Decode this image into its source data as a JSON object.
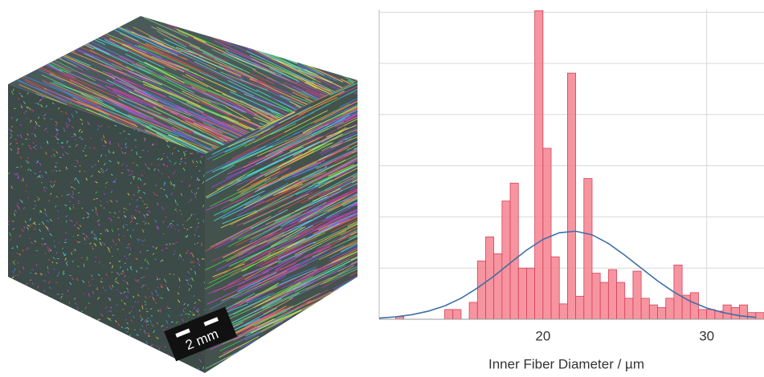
{
  "image": {
    "scale_bar_label": "2 mm"
  },
  "chart_data": {
    "type": "histogram",
    "xlabel": "Inner Fiber Diameter / µm",
    "bins": [
      10,
      10.5,
      11,
      11.5,
      12,
      12.5,
      13,
      13.5,
      14,
      14.5,
      15,
      15.5,
      16,
      16.5,
      17,
      17.5,
      18,
      18.5,
      19,
      19.5,
      20,
      20.5,
      21,
      21.5,
      22,
      22.5,
      23,
      23.5,
      24,
      24.5,
      25,
      25.5,
      26,
      26.5,
      27,
      27.5,
      28,
      28.5,
      29,
      29.5,
      30,
      30.5,
      31,
      31.5,
      32,
      32.5,
      33,
      33.5
    ],
    "counts": [
      0,
      0,
      0.05,
      0,
      0,
      0,
      0,
      0,
      0.19,
      0.19,
      0,
      0.33,
      1.14,
      1.61,
      1.28,
      2.31,
      2.66,
      1.0,
      1.0,
      6.03,
      3.34,
      1.22,
      0.3,
      4.81,
      0.45,
      2.75,
      0.9,
      0.72,
      0.97,
      0.72,
      0.41,
      0.94,
      0.41,
      0.28,
      0.23,
      0.41,
      1.06,
      0.47,
      0.52,
      0.19,
      0.19,
      0.16,
      0.28,
      0.23,
      0.28,
      0.13,
      0.13
    ],
    "color": "#f4838f",
    "edge_color": "#d9405a",
    "fit": {
      "color": "#3f6fa6",
      "x": [
        10,
        11,
        12,
        13,
        14,
        15,
        16,
        17,
        18,
        19,
        20,
        21,
        22,
        23,
        24,
        25,
        26,
        27,
        28,
        29,
        30,
        31,
        32,
        33
      ],
      "y": [
        0.023,
        0.047,
        0.089,
        0.158,
        0.26,
        0.41,
        0.61,
        0.84,
        1.1,
        1.35,
        1.56,
        1.69,
        1.72,
        1.65,
        1.48,
        1.25,
        1.0,
        0.75,
        0.53,
        0.35,
        0.22,
        0.13,
        0.069,
        0.036
      ]
    },
    "xlim": [
      10,
      33.5
    ],
    "ylim": [
      0,
      6.05
    ],
    "xticks": [
      20,
      30
    ],
    "ygrid": [
      1,
      2,
      3,
      4,
      5,
      6
    ],
    "grid": true
  }
}
